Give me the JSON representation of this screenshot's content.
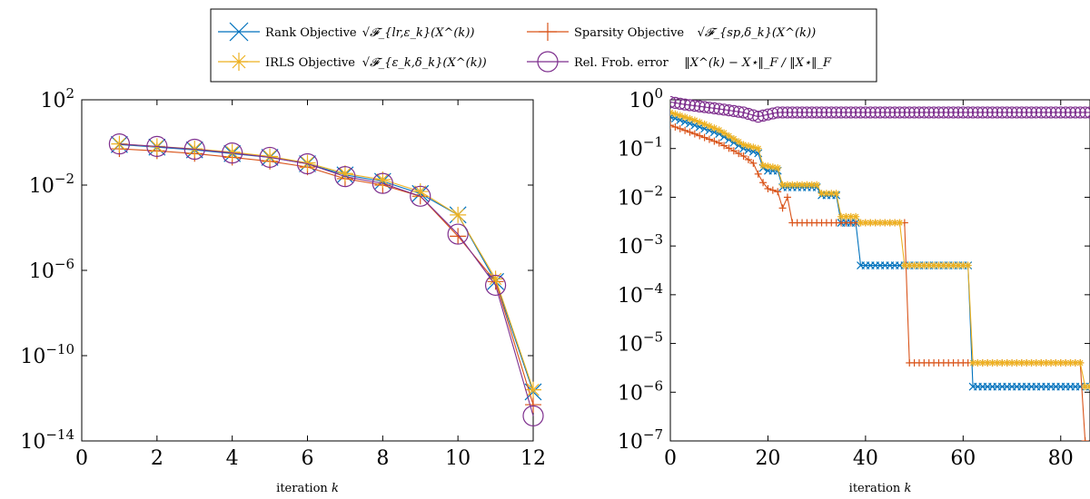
{
  "colors": {
    "rank": "#0072BD",
    "sparsity": "#D95319",
    "irls": "#EDB120",
    "frob": "#7E2F8E"
  },
  "legend": [
    {
      "key": "rank",
      "marker": "x",
      "label": "Rank Objective",
      "math": "√𝓕_{lr,ε_k}(X^(k))"
    },
    {
      "key": "sparsity",
      "marker": "plus",
      "label": "Sparsity Objective",
      "math": "√𝓕_{sp,δ_k}(X^(k))"
    },
    {
      "key": "irls",
      "marker": "star",
      "label": "IRLS Objective",
      "math": "√𝓕_{ε_k,δ_k}(X^(k))"
    },
    {
      "key": "frob",
      "marker": "circle",
      "label": "Rel. Frob. error",
      "math": "‖X^(k) − X⋆‖_F / ‖X⋆‖_F"
    }
  ],
  "chart_data": [
    {
      "type": "line",
      "yscale": "log",
      "xlabel": "iteration k",
      "xlim": [
        0,
        12
      ],
      "ylim": [
        1e-14,
        100
      ],
      "xticks": [
        "0",
        "2",
        "4",
        "6",
        "8",
        "10",
        "12"
      ],
      "yticks": [
        "10^2",
        "10^-2",
        "10^-6",
        "10^-10",
        "10^-14"
      ],
      "x": [
        1,
        2,
        3,
        4,
        5,
        6,
        7,
        8,
        9,
        10,
        11,
        12
      ],
      "series": [
        {
          "name": "Rank Objective",
          "key": "rank",
          "values": [
            0.8,
            0.6,
            0.45,
            0.3,
            0.2,
            0.1,
            0.03,
            0.015,
            0.004,
            0.0004,
            3e-07,
            2e-12
          ]
        },
        {
          "name": "Sparsity Objective",
          "key": "sparsity",
          "values": [
            0.5,
            0.4,
            0.3,
            0.2,
            0.13,
            0.07,
            0.02,
            0.01,
            0.003,
            4e-05,
            3e-07,
            5e-13
          ]
        },
        {
          "name": "IRLS Objective",
          "key": "irls",
          "values": [
            0.85,
            0.65,
            0.5,
            0.35,
            0.22,
            0.11,
            0.035,
            0.018,
            0.005,
            0.0004,
            4e-07,
            2.5e-12
          ]
        },
        {
          "name": "Rel. Frob. error",
          "key": "frob",
          "values": [
            0.85,
            0.65,
            0.48,
            0.32,
            0.2,
            0.1,
            0.025,
            0.012,
            0.003,
            5e-05,
            2e-07,
            1.5e-13
          ]
        }
      ]
    },
    {
      "type": "line",
      "yscale": "log",
      "xlabel": "iteration k",
      "xlim": [
        0,
        86
      ],
      "ylim": [
        1e-07,
        1
      ],
      "xticks": [
        "0",
        "20",
        "40",
        "60",
        "80"
      ],
      "yticks": [
        "10^0",
        "10^-1",
        "10^-2",
        "10^-3",
        "10^-4",
        "10^-5",
        "10^-6",
        "10^-7"
      ],
      "series": [
        {
          "name": "Rank Objective",
          "key": "rank",
          "segments": [
            [
              0,
              0.45
            ],
            [
              5,
              0.3
            ],
            [
              10,
              0.2
            ],
            [
              15,
              0.1
            ],
            [
              18,
              0.08
            ],
            [
              19,
              0.04
            ],
            [
              20,
              0.035
            ],
            [
              22,
              0.035
            ],
            [
              23,
              0.016
            ],
            [
              24,
              0.016
            ],
            [
              30,
              0.016
            ],
            [
              31,
              0.011
            ],
            [
              34,
              0.011
            ],
            [
              35,
              0.003
            ],
            [
              38,
              0.003
            ],
            [
              39,
              0.0004
            ],
            [
              61,
              0.0004
            ],
            [
              62,
              1.3e-06
            ],
            [
              86,
              1.3e-06
            ]
          ]
        },
        {
          "name": "Sparsity Objective",
          "key": "sparsity",
          "segments": [
            [
              0,
              0.3
            ],
            [
              5,
              0.2
            ],
            [
              10,
              0.13
            ],
            [
              15,
              0.07
            ],
            [
              17,
              0.05
            ],
            [
              18,
              0.03
            ],
            [
              19,
              0.02
            ],
            [
              20,
              0.015
            ],
            [
              22,
              0.013
            ],
            [
              23,
              0.006
            ],
            [
              24,
              0.01
            ],
            [
              25,
              0.003
            ],
            [
              33,
              0.003
            ],
            [
              34,
              0.003
            ],
            [
              48,
              0.003
            ],
            [
              48.5,
              0.0001
            ],
            [
              49,
              4e-06
            ],
            [
              61,
              4e-06
            ],
            [
              62,
              4e-06
            ],
            [
              84,
              4e-06
            ],
            [
              85,
              1e-07
            ]
          ]
        },
        {
          "name": "IRLS Objective",
          "key": "irls",
          "segments": [
            [
              0,
              0.55
            ],
            [
              5,
              0.38
            ],
            [
              10,
              0.24
            ],
            [
              15,
              0.12
            ],
            [
              18,
              0.1
            ],
            [
              19,
              0.045
            ],
            [
              22,
              0.04
            ],
            [
              23,
              0.018
            ],
            [
              30,
              0.018
            ],
            [
              31,
              0.012
            ],
            [
              34,
              0.012
            ],
            [
              35,
              0.004
            ],
            [
              38,
              0.004
            ],
            [
              39,
              0.003
            ],
            [
              47,
              0.003
            ],
            [
              48,
              0.0004
            ],
            [
              61,
              0.0004
            ],
            [
              62,
              4e-06
            ],
            [
              84,
              4e-06
            ],
            [
              85,
              1.3e-06
            ],
            [
              86,
              1.3e-06
            ]
          ]
        },
        {
          "name": "Rel. Frob. error",
          "key": "frob",
          "segments": [
            [
              0,
              0.9
            ],
            [
              3,
              0.8
            ],
            [
              10,
              0.65
            ],
            [
              15,
              0.55
            ],
            [
              18,
              0.45
            ],
            [
              20,
              0.5
            ],
            [
              22,
              0.55
            ],
            [
              86,
              0.55
            ]
          ]
        }
      ]
    }
  ]
}
